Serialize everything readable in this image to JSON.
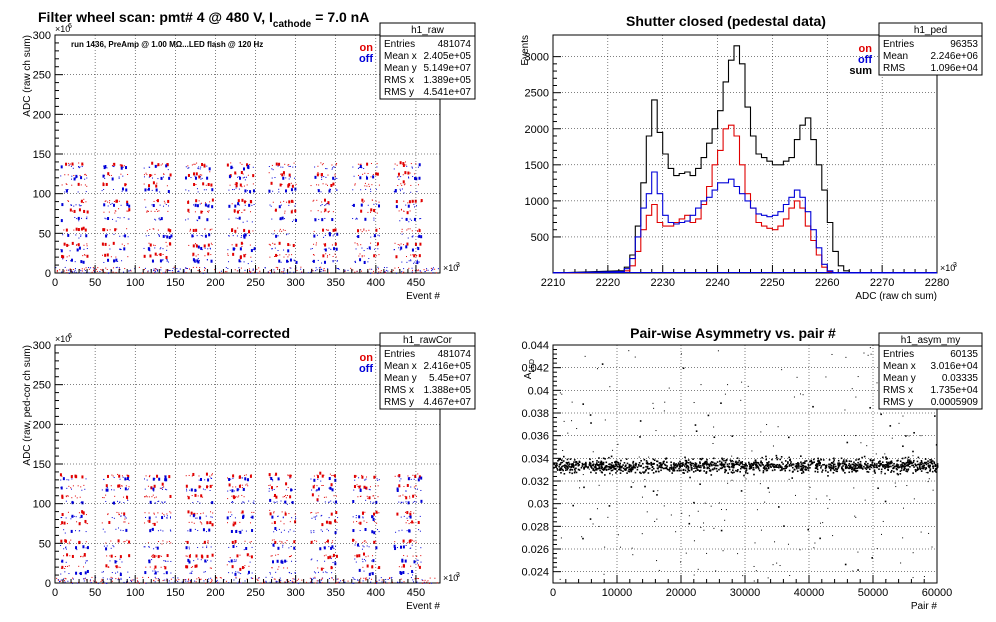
{
  "colors": {
    "on": "#e00000",
    "off": "#0000d8",
    "sum": "#000000",
    "grid": "#000000"
  },
  "chart_data": [
    {
      "id": "raw",
      "type": "scatter",
      "title": "Filter wheel scan: pmt#   4 @   480 V, I",
      "title_sub": "cathode",
      "title_tail": "= 7.0 nA",
      "annotation": "run 1436, PreAmp @ 1.00 MΩ...LED flash @  120 Hz",
      "xlabel": "Event #",
      "ylabel": "ADC (raw ch sum)",
      "x_exp": "×10",
      "x_exp_pow": "3",
      "y_exp": "×10",
      "y_exp_pow": "6",
      "xlim": [
        0,
        480
      ],
      "ylim": [
        0,
        300
      ],
      "xticks": [
        "0",
        "50",
        "100",
        "150",
        "200",
        "250",
        "300",
        "350",
        "400",
        "450"
      ],
      "yticks": [
        "0",
        "50",
        "100",
        "150",
        "200",
        "250",
        "300"
      ],
      "legend": [
        "on",
        "off"
      ],
      "bands": [
        {
          "level": 137,
          "color": "on"
        },
        {
          "level": 133,
          "color": "off"
        },
        {
          "level": 124,
          "color": "on"
        },
        {
          "level": 120,
          "color": "off"
        },
        {
          "level": 111,
          "color": "on"
        },
        {
          "level": 104,
          "color": "off"
        },
        {
          "level": 90,
          "color": "on"
        },
        {
          "level": 85,
          "color": "off"
        },
        {
          "level": 78,
          "color": "on"
        },
        {
          "level": 68,
          "color": "off"
        },
        {
          "level": 54,
          "color": "on"
        },
        {
          "level": 47,
          "color": "off"
        },
        {
          "level": 36,
          "color": "on"
        },
        {
          "level": 30,
          "color": "off"
        },
        {
          "level": 22,
          "color": "on"
        },
        {
          "level": 15,
          "color": "off"
        }
      ],
      "stats": {
        "name": "h1_raw",
        "rows": [
          [
            "Entries",
            "481074"
          ],
          [
            "Mean x",
            "2.405e+05"
          ],
          [
            "Mean y",
            "5.149e+07"
          ],
          [
            "RMS x",
            "1.389e+05"
          ],
          [
            "RMS y",
            "4.541e+07"
          ]
        ]
      }
    },
    {
      "id": "ped",
      "type": "line",
      "title": "Shutter closed (pedestal data)",
      "xlabel": "ADC (raw ch sum)",
      "ylabel": "Events",
      "x_exp": "×10",
      "x_exp_pow": "3",
      "xlim": [
        2210,
        2280
      ],
      "ylim": [
        0,
        3300
      ],
      "xticks": [
        "2210",
        "2220",
        "2230",
        "2240",
        "2250",
        "2260",
        "2270",
        "2280"
      ],
      "yticks": [
        "500",
        "1000",
        "1500",
        "2000",
        "2500",
        "3000"
      ],
      "ytick_values": [
        500,
        1000,
        1500,
        2000,
        2500,
        3000
      ],
      "xtick_values": [
        2210,
        2220,
        2230,
        2240,
        2250,
        2260,
        2270,
        2280
      ],
      "legend": [
        "on",
        "off",
        "sum"
      ],
      "x": [
        2222,
        2223,
        2224,
        2225,
        2226,
        2227,
        2228,
        2229,
        2230,
        2231,
        2232,
        2233,
        2234,
        2235,
        2236,
        2237,
        2238,
        2239,
        2240,
        2241,
        2242,
        2243,
        2244,
        2245,
        2246,
        2247,
        2248,
        2249,
        2250,
        2251,
        2252,
        2253,
        2254,
        2255,
        2256,
        2257,
        2258,
        2259,
        2260,
        2261,
        2262,
        2263,
        2264,
        2265,
        2266,
        2267,
        2268
      ],
      "series": [
        {
          "name": "sum",
          "color": "sum",
          "values": [
            30,
            80,
            250,
            650,
            1250,
            1900,
            2400,
            1950,
            1650,
            1450,
            1350,
            1380,
            1400,
            1350,
            1450,
            1600,
            1800,
            2000,
            2250,
            2650,
            2950,
            3150,
            2900,
            2300,
            1900,
            1650,
            1600,
            1550,
            1500,
            1500,
            1550,
            1600,
            1850,
            2050,
            2150,
            1850,
            1500,
            1150,
            700,
            300,
            100,
            30,
            0,
            0,
            0,
            0,
            0
          ]
        },
        {
          "name": "on",
          "color": "on",
          "values": [
            10,
            30,
            100,
            300,
            600,
            800,
            950,
            700,
            650,
            650,
            700,
            750,
            800,
            700,
            750,
            950,
            1200,
            1500,
            1700,
            2000,
            2050,
            1900,
            1500,
            1100,
            900,
            700,
            650,
            620,
            600,
            650,
            750,
            900,
            1000,
            900,
            650,
            450,
            250,
            80,
            20,
            0,
            0,
            0,
            0,
            0,
            0,
            0,
            0
          ]
        },
        {
          "name": "off",
          "color": "off",
          "values": [
            20,
            60,
            200,
            500,
            900,
            1100,
            1400,
            1100,
            800,
            700,
            680,
            700,
            720,
            800,
            900,
            1000,
            1050,
            1150,
            1250,
            1250,
            1300,
            1200,
            1100,
            1000,
            900,
            820,
            800,
            780,
            800,
            850,
            950,
            1050,
            1150,
            1050,
            850,
            600,
            350,
            120,
            30,
            0,
            0,
            0,
            0,
            0,
            0,
            0,
            0
          ]
        }
      ],
      "stats": {
        "name": "h1_ped",
        "rows": [
          [
            "Entries",
            "96353"
          ],
          [
            "Mean",
            "2.246e+06"
          ],
          [
            "RMS",
            "1.096e+04"
          ]
        ]
      }
    },
    {
      "id": "cor",
      "type": "scatter",
      "title": "Pedestal-corrected",
      "xlabel": "Event #",
      "ylabel": "ADC (raw, ped-cor ch sum)",
      "x_exp": "×10",
      "x_exp_pow": "3",
      "y_exp": "×10",
      "y_exp_pow": "6",
      "xlim": [
        0,
        480
      ],
      "ylim": [
        0,
        300
      ],
      "xticks": [
        "0",
        "50",
        "100",
        "150",
        "200",
        "250",
        "300",
        "350",
        "400",
        "450"
      ],
      "yticks": [
        "0",
        "50",
        "100",
        "150",
        "200",
        "250",
        "300"
      ],
      "legend": [
        "on",
        "off"
      ],
      "bands": [
        {
          "level": 135,
          "color": "on"
        },
        {
          "level": 131,
          "color": "off"
        },
        {
          "level": 122,
          "color": "on"
        },
        {
          "level": 118,
          "color": "off"
        },
        {
          "level": 109,
          "color": "on"
        },
        {
          "level": 102,
          "color": "off"
        },
        {
          "level": 88,
          "color": "on"
        },
        {
          "level": 83,
          "color": "off"
        },
        {
          "level": 76,
          "color": "on"
        },
        {
          "level": 66,
          "color": "off"
        },
        {
          "level": 52,
          "color": "on"
        },
        {
          "level": 45,
          "color": "off"
        },
        {
          "level": 34,
          "color": "on"
        },
        {
          "level": 28,
          "color": "off"
        },
        {
          "level": 20,
          "color": "on"
        },
        {
          "level": 13,
          "color": "off"
        }
      ],
      "stats": {
        "name": "h1_rawCor",
        "rows": [
          [
            "Entries",
            "481074"
          ],
          [
            "Mean x",
            "2.416e+05"
          ],
          [
            "Mean y",
            "5.45e+07"
          ],
          [
            "RMS x",
            "1.388e+05"
          ],
          [
            "RMS y",
            "4.467e+07"
          ]
        ]
      }
    },
    {
      "id": "asym",
      "type": "scatter",
      "title": "Pair-wise Asymmetry vs. pair #",
      "xlabel": "Pair #",
      "ylabel": "A",
      "ylabel_sub": "LED",
      "xlim": [
        0,
        60000
      ],
      "ylim": [
        0.023,
        0.044
      ],
      "xticks": [
        "0",
        "10000",
        "20000",
        "30000",
        "40000",
        "50000",
        "60000"
      ],
      "xtick_values": [
        0,
        10000,
        20000,
        30000,
        40000,
        50000,
        60000
      ],
      "yticks": [
        "0.024",
        "0.026",
        "0.028",
        "0.03",
        "0.032",
        "0.034",
        "0.036",
        "0.038",
        "0.04",
        "0.042",
        "0.044"
      ],
      "ytick_values": [
        0.024,
        0.026,
        0.028,
        0.03,
        0.032,
        0.034,
        0.036,
        0.038,
        0.04,
        0.042,
        0.044
      ],
      "center": 0.0334,
      "spread": 0.0006,
      "stats": {
        "name": "h1_asym_my",
        "rows": [
          [
            "Entries",
            "60135"
          ],
          [
            "Mean x",
            "3.016e+04"
          ],
          [
            "Mean y",
            "0.03335"
          ],
          [
            "RMS x",
            "1.735e+04"
          ],
          [
            "RMS y",
            "0.0005909"
          ]
        ]
      }
    }
  ]
}
